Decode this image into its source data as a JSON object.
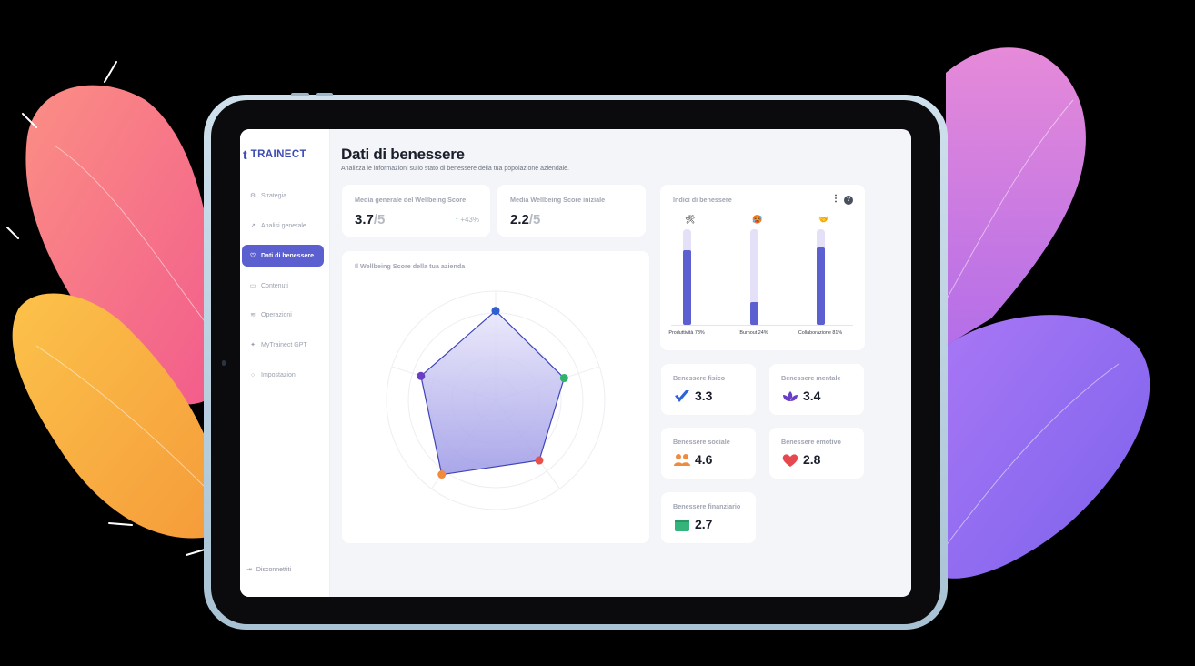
{
  "brand": {
    "name": "TRAINECT",
    "mark": "t"
  },
  "sidebar": {
    "items": [
      {
        "label": "Strategia",
        "icon": "strategy-icon",
        "glyph": "⚙"
      },
      {
        "label": "Analisi generale",
        "icon": "chart-icon",
        "glyph": "↗"
      },
      {
        "label": "Dati di benessere",
        "icon": "heart-icon",
        "glyph": "♡",
        "active": true
      },
      {
        "label": "Contenuti",
        "icon": "monitor-icon",
        "glyph": "▭"
      },
      {
        "label": "Operazioni",
        "icon": "layers-icon",
        "glyph": "≋"
      },
      {
        "label": "MyTrainect GPT",
        "icon": "sparkle-icon",
        "glyph": "✦"
      },
      {
        "label": "Impostazioni",
        "icon": "gear-icon",
        "glyph": "○"
      }
    ],
    "logout": "Disconnettiti"
  },
  "header": {
    "title": "Dati di benessere",
    "subtitle": "Analizza le informazioni sullo stato di benessere della tua popolazione aziendale."
  },
  "cards": {
    "avg": {
      "label": "Media generale del Wellbeing Score",
      "value": "3.7",
      "denominator": "/5",
      "delta": "+43%",
      "delta_arrow": "↑"
    },
    "initial": {
      "label": "Media Wellbeing Score iniziale",
      "value": "2.2",
      "denominator": "/5"
    },
    "radar": {
      "label": "Il Wellbeing Score della tua azienda"
    },
    "indici": {
      "label": "Indici di benessere",
      "menu_glyph": "⋮",
      "help_glyph": "?"
    }
  },
  "bars": [
    {
      "label": "Produttività 78%",
      "value": 78,
      "emoji": "🛠"
    },
    {
      "label": "Burnout 24%",
      "value": 24,
      "emoji": "🥵"
    },
    {
      "label": "Collaborazione 81%",
      "value": 81,
      "emoji": "🤝"
    }
  ],
  "radar_data": {
    "axes_colors": [
      "#2f5fd0",
      "#2fb36a",
      "#e8504a",
      "#f08a3c",
      "#6a3fc6"
    ],
    "values": [
      4.1,
      3.3,
      3.4,
      4.2,
      3.6
    ],
    "max": 5
  },
  "wellbeing": [
    {
      "label": "Benessere fisico",
      "value": "3.3",
      "icon": "check-wave-icon",
      "color": "#2f62d6"
    },
    {
      "label": "Benessere mentale",
      "value": "3.4",
      "icon": "lotus-icon",
      "color": "#6a3fc6"
    },
    {
      "label": "Benessere sociale",
      "value": "4.6",
      "icon": "people-icon",
      "color": "#f08a3c"
    },
    {
      "label": "Benessere emotivo",
      "value": "2.8",
      "icon": "heart-icon",
      "color": "#e5484d"
    },
    {
      "label": "Benessere finanziario",
      "value": "2.7",
      "icon": "wallet-icon",
      "color": "#34b37a"
    }
  ]
}
